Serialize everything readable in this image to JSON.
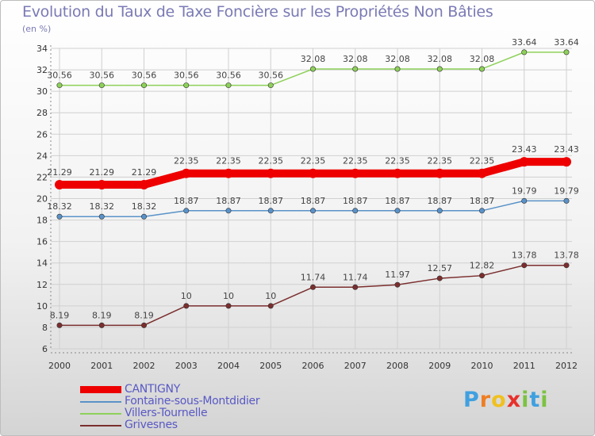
{
  "header": {
    "title": "Evolution du Taux de Taxe Foncière sur les Propriétés Non Bâties",
    "unit": "(en %)"
  },
  "brand": {
    "letters": [
      "P",
      "r",
      "o",
      "x",
      "i",
      "t",
      "i"
    ],
    "colors": [
      "#3fa0e0",
      "#ef7d22",
      "#f0c020",
      "#e8302b",
      "#7cc242",
      "#3fa0e0",
      "#7cc242"
    ]
  },
  "chart_data": {
    "type": "line",
    "title": "Evolution du Taux de Taxe Foncière sur les Propriétés Non Bâties",
    "ylabel": "(en %)",
    "xlabel": "",
    "ylim": [
      6,
      34
    ],
    "yticks": [
      6,
      8,
      10,
      12,
      14,
      16,
      18,
      20,
      22,
      24,
      26,
      28,
      30,
      32,
      34
    ],
    "grid": true,
    "legend_position": "bottom-left",
    "x": [
      "2000",
      "2001",
      "2002",
      "2003",
      "2004",
      "2005",
      "2006",
      "2007",
      "2008",
      "2009",
      "2010",
      "2011",
      "2012"
    ],
    "series": [
      {
        "name": "CANTIGNY",
        "color": "#ee0000",
        "highlight": true,
        "values": [
          21.29,
          21.29,
          21.29,
          22.35,
          22.35,
          22.35,
          22.35,
          22.35,
          22.35,
          22.35,
          22.35,
          23.43,
          23.43
        ],
        "labels": [
          "21.29",
          "21.29",
          "21.29",
          "22.35",
          "22.35",
          "22.35",
          "22.35",
          "22.35",
          "22.35",
          "22.35",
          "22.35",
          "23.43",
          "23.43"
        ]
      },
      {
        "name": "Fontaine-sous-Montdidier",
        "color": "#5a92c8",
        "highlight": false,
        "values": [
          18.32,
          18.32,
          18.32,
          18.87,
          18.87,
          18.87,
          18.87,
          18.87,
          18.87,
          18.87,
          18.87,
          19.79,
          19.79
        ],
        "labels": [
          "18.32",
          "18.32",
          "18.32",
          "18.87",
          "18.87",
          "18.87",
          "18.87",
          "18.87",
          "18.87",
          "18.87",
          "18.87",
          "19.79",
          "19.79"
        ]
      },
      {
        "name": "Villers-Tournelle",
        "color": "#8ed15a",
        "highlight": false,
        "values": [
          30.56,
          30.56,
          30.56,
          30.56,
          30.56,
          30.56,
          32.08,
          32.08,
          32.08,
          32.08,
          32.08,
          33.64,
          33.64
        ],
        "labels": [
          "30.56",
          "30.56",
          "30.56",
          "30.56",
          "30.56",
          "30.56",
          "32.08",
          "32.08",
          "32.08",
          "32.08",
          "32.08",
          "33.64",
          "33.64"
        ]
      },
      {
        "name": "Grivesnes",
        "color": "#7b2e2e",
        "highlight": false,
        "values": [
          8.19,
          8.19,
          8.19,
          10,
          10,
          10,
          11.74,
          11.74,
          11.97,
          12.57,
          12.82,
          13.78,
          13.78
        ],
        "labels": [
          "8.19",
          "8.19",
          "8.19",
          "10",
          "10",
          "10",
          "11.74",
          "11.74",
          "11.97",
          "12.57",
          "12.82",
          "13.78",
          "13.78"
        ]
      }
    ]
  }
}
